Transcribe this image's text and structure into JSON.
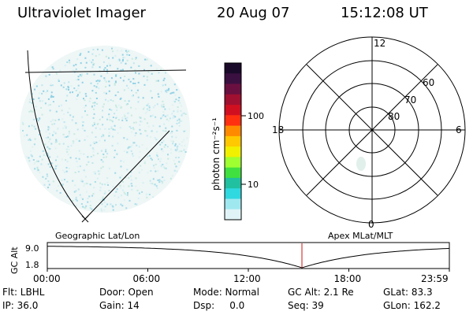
{
  "header": {
    "title": "Ultraviolet Imager",
    "date": "20 Aug 07",
    "time": "15:12:08 UT"
  },
  "colorbar": {
    "label": "photon cm⁻²s⁻¹",
    "ticks": [
      "100",
      "10"
    ],
    "colors": [
      "#1a0a2a",
      "#3a1040",
      "#6a1040",
      "#a01030",
      "#d01020",
      "#ff3010",
      "#ff8a00",
      "#ffc800",
      "#f0f000",
      "#a0ff30",
      "#40e040",
      "#20c0a0",
      "#30d8e0",
      "#a0e8f0",
      "#e0f4f8"
    ]
  },
  "polar": {
    "mlt_labels": {
      "top": "12",
      "left": "18",
      "right": "6",
      "bottom": "0"
    },
    "lat_labels": [
      "60",
      "70",
      "80"
    ]
  },
  "timeline": {
    "ylabel": "GC Alt",
    "yticks": [
      "9.0",
      "1.8"
    ],
    "left_label": "Geographic Lat/Lon",
    "right_label": "Apex MLat/MLT",
    "xticks": [
      "00:00",
      "06:00",
      "12:00",
      "18:00",
      "23:59"
    ],
    "marker_hour": 15.2,
    "marker_color": "#d01010"
  },
  "info": {
    "row1": [
      "Flt: LBHL",
      "Door: Open",
      "Mode: Normal",
      "GC Alt: 2.1 Re",
      "GLat: 83.3"
    ],
    "row2": [
      "IP: 36.0",
      "Gain: 14",
      "Dsp:     0.0",
      "Seq: 39",
      "GLon: 162.2"
    ]
  }
}
